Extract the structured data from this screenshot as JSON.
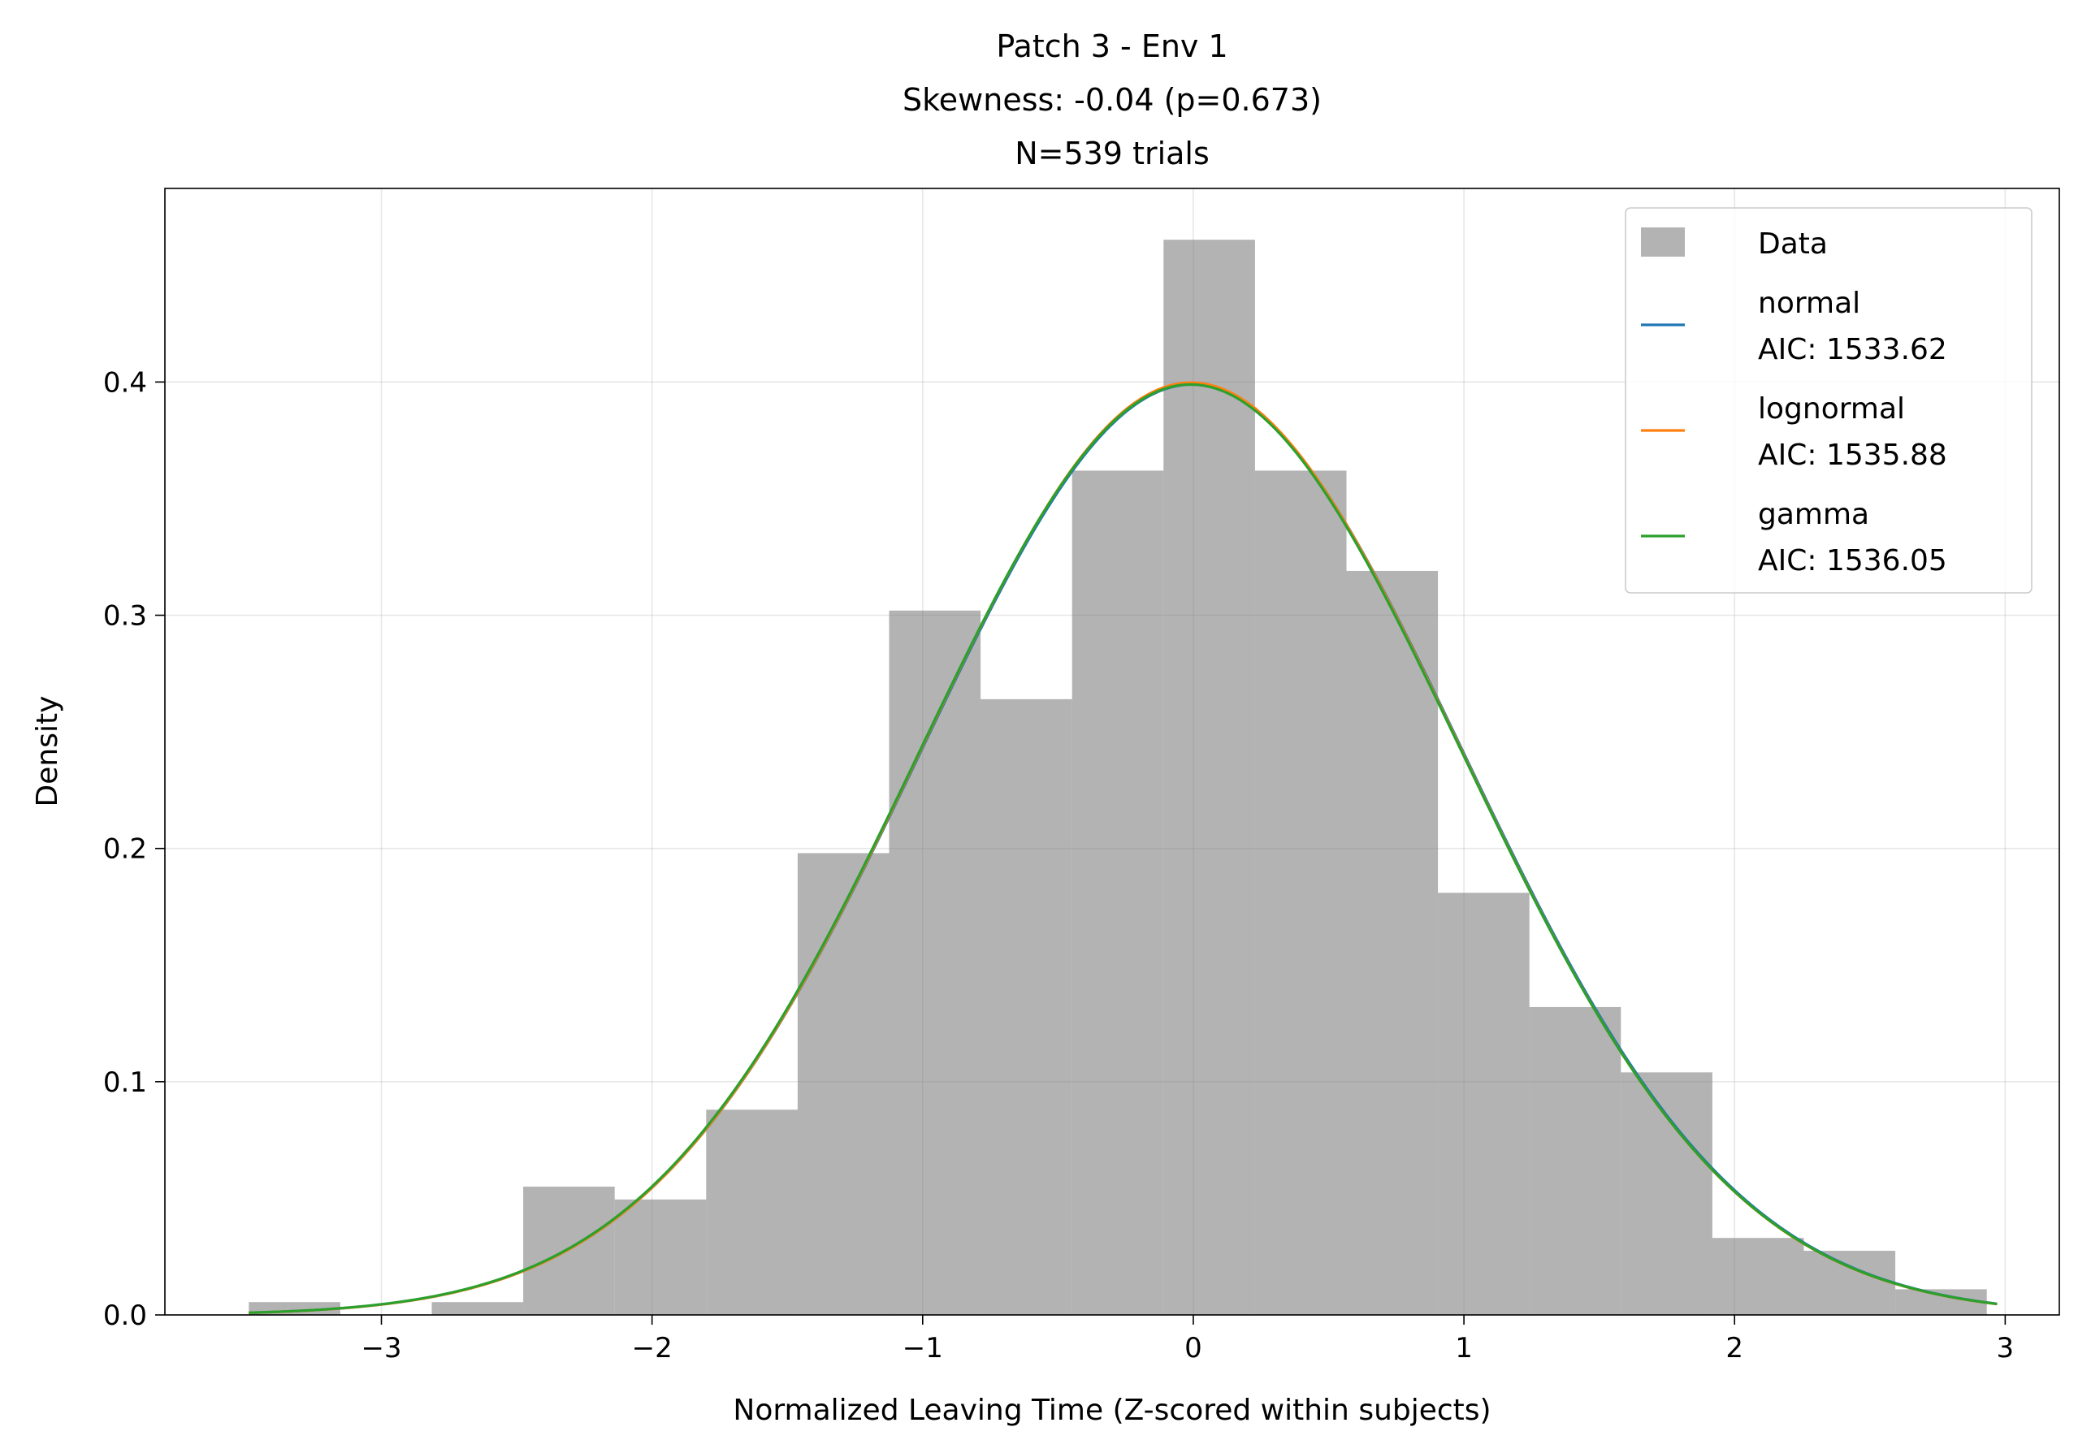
{
  "chart_data": {
    "type": "bar",
    "title_lines": [
      "Patch 3 - Env 1",
      "Skewness: -0.04 (p=0.673)",
      "N=539 trials"
    ],
    "xlabel": "Normalized Leaving Time (Z-scored within subjects)",
    "ylabel": "Density",
    "xlim": [
      -3.8,
      3.2
    ],
    "ylim": [
      0,
      0.483
    ],
    "xticks": [
      -3,
      -2,
      -1,
      0,
      1,
      2,
      3
    ],
    "xtick_labels": [
      "−3",
      "−2",
      "−1",
      "0",
      "1",
      "2",
      "3"
    ],
    "yticks": [
      0.0,
      0.1,
      0.2,
      0.3,
      0.4
    ],
    "ytick_labels": [
      "0.0",
      "0.1",
      "0.2",
      "0.3",
      "0.4"
    ],
    "grid": true,
    "histogram": {
      "name": "Data",
      "color": "#808080",
      "bin_edges": [
        -3.49,
        -3.152,
        -2.814,
        -2.476,
        -2.138,
        -1.8,
        -1.462,
        -1.124,
        -0.786,
        -0.448,
        -0.11,
        0.228,
        0.566,
        0.904,
        1.242,
        1.58,
        1.918,
        2.256,
        2.594,
        2.932
      ],
      "densities": [
        0.0055,
        0.0,
        0.0055,
        0.055,
        0.0495,
        0.088,
        0.198,
        0.302,
        0.264,
        0.362,
        0.461,
        0.362,
        0.319,
        0.181,
        0.132,
        0.104,
        0.033,
        0.0275,
        0.011
      ]
    },
    "fits": [
      {
        "name": "normal",
        "label": "AIC: 1533.62",
        "color": "#1f77b4",
        "mean": -0.005,
        "sd": 1.0,
        "x_range": [
          -3.49,
          2.97
        ]
      },
      {
        "name": "lognormal",
        "label": "AIC: 1535.88",
        "color": "#ff7f0e",
        "mean": -0.008,
        "sd": 0.998,
        "x_range": [
          -3.49,
          2.97
        ]
      },
      {
        "name": "gamma",
        "label": "AIC: 1536.05",
        "color": "#2ca02c",
        "mean": -0.01,
        "sd": 1.0,
        "x_range": [
          -3.49,
          2.97
        ]
      }
    ],
    "legend": {
      "placement": "upper right",
      "entries": [
        {
          "kind": "patch",
          "lines": [
            "Data"
          ],
          "color": "#808080"
        },
        {
          "kind": "line",
          "lines": [
            "normal",
            "AIC: 1533.62"
          ],
          "color": "#1f77b4"
        },
        {
          "kind": "line",
          "lines": [
            "lognormal",
            "AIC: 1535.88"
          ],
          "color": "#ff7f0e"
        },
        {
          "kind": "line",
          "lines": [
            "gamma",
            "AIC: 1536.05"
          ],
          "color": "#2ca02c"
        }
      ]
    }
  }
}
